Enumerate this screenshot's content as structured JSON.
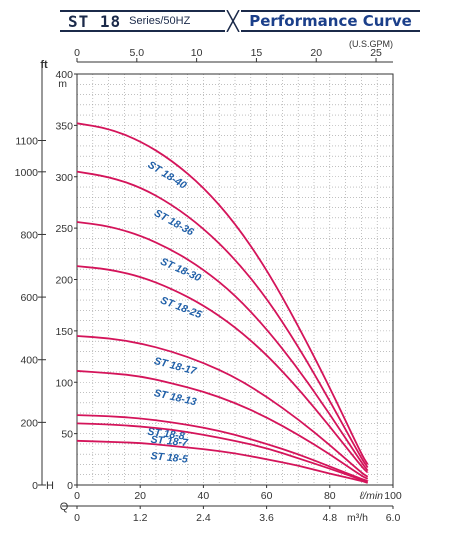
{
  "header": {
    "model": "ST 18",
    "series": "Series/50HZ",
    "title": "Performance Curve"
  },
  "colors": {
    "curve": "#d4145a",
    "curve_label": "#1f5fa8",
    "axis": "#333333",
    "grid": "#9a9a9a",
    "header": "#1b2a4a"
  },
  "chart_data": {
    "type": "line",
    "units": {
      "flow_primary": "ℓ/min",
      "flow_secondary": "m³/h",
      "flow_top": "(U.S.GPM)",
      "head_primary": "m",
      "head_secondary": "ft",
      "head_axis_letter": "H",
      "flow_axis_letter": "Q"
    },
    "xlim": [
      0,
      100
    ],
    "ylim": [
      0,
      400
    ],
    "x_ticks_lmin": [
      "0",
      "20",
      "40",
      "60",
      "80",
      "100"
    ],
    "x_ticks_m3h": [
      "0",
      "1.2",
      "2.4",
      "3.6",
      "4.8",
      "6.0"
    ],
    "x_ticks_gpm": [
      "0",
      "5.0",
      "10",
      "15",
      "20",
      "25"
    ],
    "y_ticks_m": [
      "0",
      "50",
      "100",
      "150",
      "200",
      "250",
      "300",
      "350",
      "400"
    ],
    "y_ticks_ft": [
      "0",
      "200",
      "400",
      "600",
      "800",
      "1000",
      "1100"
    ],
    "grid": true,
    "series": [
      {
        "name": "ST 18-40",
        "x": [
          0,
          10,
          20,
          30,
          40,
          50,
          60,
          70,
          80,
          90,
          92
        ],
        "y": [
          352,
          347,
          335,
          316,
          290,
          255,
          210,
          155,
          95,
          30,
          20
        ]
      },
      {
        "name": "ST 18-36",
        "x": [
          0,
          10,
          20,
          30,
          40,
          50,
          60,
          70,
          80,
          90,
          92
        ],
        "y": [
          305,
          300,
          290,
          273,
          250,
          220,
          182,
          135,
          82,
          26,
          17
        ]
      },
      {
        "name": "ST 18-30",
        "x": [
          0,
          10,
          20,
          30,
          40,
          50,
          60,
          70,
          80,
          90,
          92
        ],
        "y": [
          256,
          252,
          243,
          229,
          210,
          185,
          152,
          113,
          69,
          22,
          14
        ]
      },
      {
        "name": "ST 18-25",
        "x": [
          0,
          10,
          20,
          30,
          40,
          50,
          60,
          70,
          80,
          90,
          92
        ],
        "y": [
          213,
          210,
          203,
          191,
          175,
          154,
          127,
          94,
          57,
          18,
          12
        ]
      },
      {
        "name": "ST 18-17",
        "x": [
          0,
          10,
          20,
          30,
          40,
          50,
          60,
          70,
          80,
          90,
          92
        ],
        "y": [
          145,
          143,
          138,
          130,
          119,
          105,
          86,
          64,
          39,
          12,
          8
        ]
      },
      {
        "name": "ST 18-13",
        "x": [
          0,
          10,
          20,
          30,
          40,
          50,
          60,
          70,
          80,
          90,
          92
        ],
        "y": [
          111,
          109,
          106,
          99,
          91,
          80,
          66,
          49,
          30,
          9,
          6
        ]
      },
      {
        "name": "ST 18-8",
        "x": [
          0,
          10,
          20,
          30,
          40,
          50,
          60,
          70,
          80,
          90,
          92
        ],
        "y": [
          68,
          67,
          65,
          61,
          56,
          49,
          40,
          30,
          18,
          6,
          4
        ]
      },
      {
        "name": "ST 18-7",
        "x": [
          0,
          10,
          20,
          30,
          40,
          50,
          60,
          70,
          80,
          90,
          92
        ],
        "y": [
          60,
          59,
          57,
          54,
          49,
          43,
          36,
          26,
          16,
          5,
          3
        ]
      },
      {
        "name": "ST 18-5",
        "x": [
          0,
          10,
          20,
          30,
          40,
          50,
          60,
          70,
          80,
          90,
          92
        ],
        "y": [
          43,
          42,
          41,
          38,
          35,
          31,
          25,
          19,
          11,
          4,
          2
        ]
      }
    ]
  }
}
